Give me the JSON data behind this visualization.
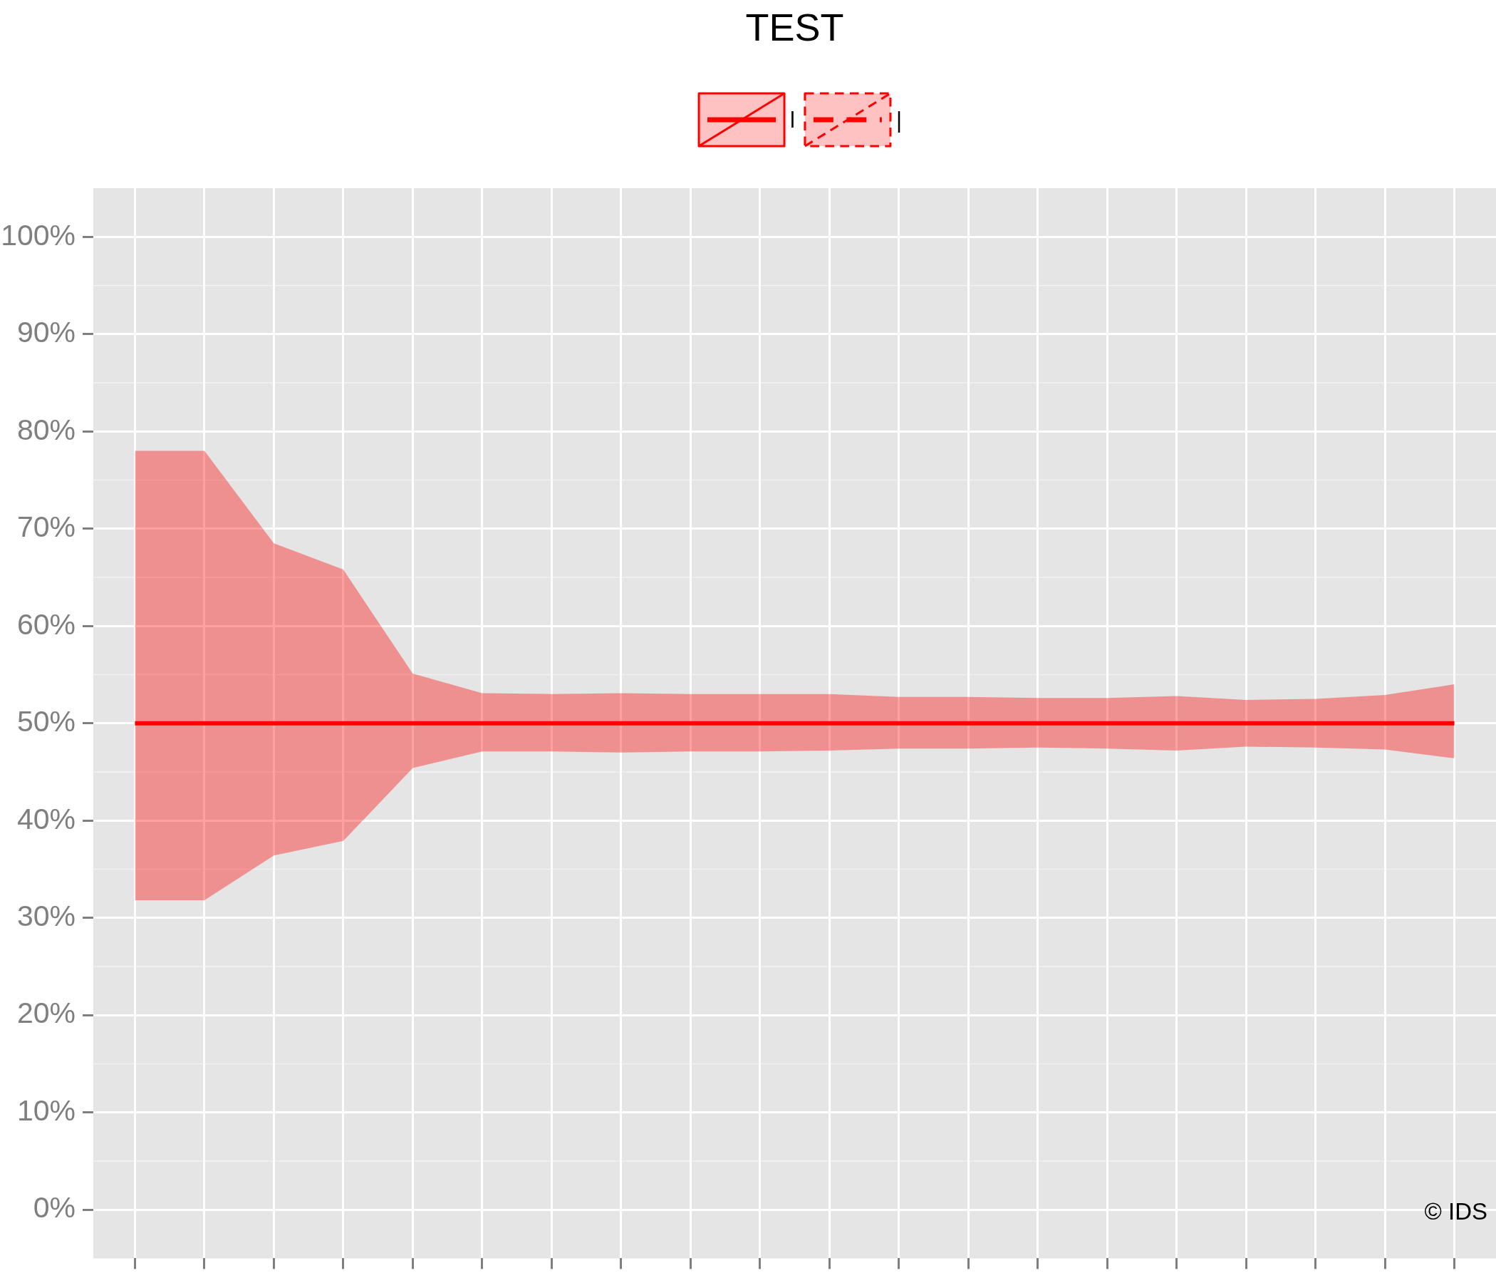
{
  "chart_data": {
    "type": "line",
    "title": "TEST",
    "categories": [
      null,
      null,
      null,
      null,
      null,
      null,
      null,
      null,
      null,
      null,
      null,
      null,
      null,
      null,
      null,
      null,
      null,
      null,
      null,
      null
    ],
    "series": [
      {
        "name": "l",
        "color": "#ff0000",
        "line_style": "solid",
        "values": [
          50,
          50,
          50,
          50,
          50,
          50,
          50,
          50,
          50,
          50,
          50,
          50,
          50,
          50,
          50,
          50,
          50,
          50,
          50,
          50
        ],
        "upper": [
          78.0,
          78.0,
          68.5,
          65.8,
          55.1,
          53.1,
          53.0,
          53.1,
          53.0,
          53.0,
          53.0,
          52.7,
          52.7,
          52.6,
          52.6,
          52.8,
          52.4,
          52.5,
          52.9,
          54.0
        ],
        "lower": [
          31.8,
          31.8,
          36.4,
          37.9,
          45.4,
          47.1,
          47.1,
          47.0,
          47.1,
          47.1,
          47.2,
          47.4,
          47.4,
          47.5,
          47.4,
          47.2,
          47.6,
          47.5,
          47.3,
          46.4
        ]
      },
      {
        "name": "|",
        "color": "#ff0000",
        "line_style": "dashed",
        "values": [
          null,
          null,
          null,
          null,
          null,
          null,
          null,
          null,
          null,
          null,
          null,
          null,
          null,
          null,
          null,
          null,
          null,
          null,
          null,
          null
        ]
      }
    ],
    "ylim": [
      -5,
      105
    ],
    "yticks": [
      {
        "value": 0,
        "label": "0%"
      },
      {
        "value": 10,
        "label": "10%"
      },
      {
        "value": 20,
        "label": "20%"
      },
      {
        "value": 30,
        "label": "30%"
      },
      {
        "value": 40,
        "label": "40%"
      },
      {
        "value": 50,
        "label": "50%"
      },
      {
        "value": 60,
        "label": "60%"
      },
      {
        "value": 70,
        "label": "70%"
      },
      {
        "value": 80,
        "label": "80%"
      },
      {
        "value": 90,
        "label": "90%"
      },
      {
        "value": 100,
        "label": "100%"
      }
    ],
    "grid": true,
    "legend": "top",
    "tick_labels": "y",
    "marker": "none",
    "annotations": [
      "© IDS"
    ]
  }
}
